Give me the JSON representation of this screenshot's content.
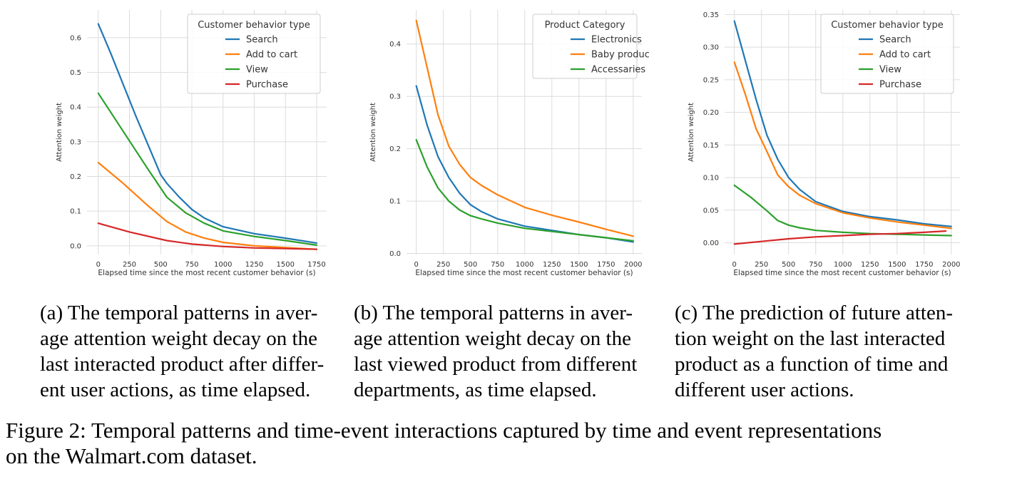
{
  "chart_data": [
    {
      "type": "line",
      "title": "",
      "xlabel": "Elapsed time since the most recent customer behavior (s)",
      "ylabel": "Attention weight",
      "xlim": [
        -90,
        1830
      ],
      "ylim": [
        -0.025,
        0.68
      ],
      "xticks": [
        0,
        250,
        500,
        750,
        1000,
        1250,
        1500,
        1750
      ],
      "yticks": [
        0.0,
        0.1,
        0.2,
        0.3,
        0.4,
        0.5,
        0.6
      ],
      "ytick_labels": [
        "0.0",
        "0.1",
        "0.2",
        "0.3",
        "0.4",
        "0.5",
        "0.6"
      ],
      "grid": true,
      "legend": {
        "title": "Customer behavior type",
        "placement": "top-right"
      },
      "series": [
        {
          "name": "Search",
          "color": "#1f77b4",
          "x": [
            0,
            100,
            200,
            300,
            400,
            500,
            550,
            650,
            750,
            850,
            1000,
            1250,
            1500,
            1750
          ],
          "y": [
            0.64,
            0.555,
            0.465,
            0.375,
            0.29,
            0.205,
            0.18,
            0.14,
            0.105,
            0.08,
            0.055,
            0.035,
            0.022,
            0.008
          ]
        },
        {
          "name": "Add to cart",
          "color": "#ff7f0e",
          "x": [
            0,
            200,
            400,
            550,
            700,
            850,
            1000,
            1250,
            1500,
            1750
          ],
          "y": [
            0.24,
            0.18,
            0.115,
            0.07,
            0.04,
            0.022,
            0.01,
            0.0,
            -0.005,
            -0.01
          ]
        },
        {
          "name": "View",
          "color": "#2ca02c",
          "x": [
            0,
            200,
            400,
            550,
            700,
            850,
            1000,
            1250,
            1500,
            1750
          ],
          "y": [
            0.44,
            0.33,
            0.22,
            0.14,
            0.095,
            0.065,
            0.043,
            0.027,
            0.015,
            0.002
          ]
        },
        {
          "name": "Purchase",
          "color": "#d62728",
          "x": [
            0,
            250,
            550,
            750,
            1000,
            1250,
            1500,
            1750
          ],
          "y": [
            0.065,
            0.04,
            0.015,
            0.005,
            -0.002,
            -0.006,
            -0.008,
            -0.01
          ]
        }
      ]
    },
    {
      "type": "line",
      "title": "",
      "xlabel": "Elapsed time since the most recent customer behavior (s)",
      "ylabel": "Attention weight",
      "xlim": [
        -90,
        2080
      ],
      "ylim": [
        -0.002,
        0.465
      ],
      "xticks": [
        0,
        250,
        500,
        750,
        1000,
        1250,
        1500,
        1750,
        2000
      ],
      "yticks": [
        0.0,
        0.1,
        0.2,
        0.3,
        0.4
      ],
      "ytick_labels": [
        "0.0",
        "0.1",
        "0.2",
        "0.3",
        "0.4"
      ],
      "grid": true,
      "legend": {
        "title": "Product Category",
        "placement": "top-right"
      },
      "series": [
        {
          "name": "Electronics",
          "color": "#1f77b4",
          "x": [
            0,
            100,
            200,
            300,
            400,
            500,
            600,
            750,
            1000,
            1250,
            1500,
            1750,
            2000
          ],
          "y": [
            0.32,
            0.245,
            0.185,
            0.145,
            0.115,
            0.093,
            0.08,
            0.066,
            0.052,
            0.044,
            0.036,
            0.03,
            0.022
          ]
        },
        {
          "name": "Baby products",
          "color": "#ff7f0e",
          "x": [
            0,
            100,
            200,
            300,
            400,
            500,
            600,
            750,
            1000,
            1250,
            1500,
            1750,
            2000
          ],
          "y": [
            0.445,
            0.355,
            0.265,
            0.205,
            0.17,
            0.145,
            0.13,
            0.112,
            0.088,
            0.073,
            0.06,
            0.046,
            0.033
          ]
        },
        {
          "name": "Accessaries",
          "color": "#2ca02c",
          "x": [
            0,
            100,
            200,
            300,
            400,
            500,
            600,
            750,
            1000,
            1250,
            1500,
            1750,
            2000
          ],
          "y": [
            0.217,
            0.165,
            0.125,
            0.1,
            0.083,
            0.072,
            0.066,
            0.058,
            0.048,
            0.042,
            0.036,
            0.03,
            0.024
          ]
        }
      ]
    },
    {
      "type": "line",
      "title": "",
      "xlabel": "Elapsed time since the most recent customer behavior (s)",
      "ylabel": "Attention weight",
      "xlim": [
        -90,
        2080
      ],
      "ylim": [
        -0.018,
        0.357
      ],
      "xticks": [
        0,
        250,
        500,
        750,
        1000,
        1250,
        1500,
        1750,
        2000
      ],
      "yticks": [
        0.0,
        0.05,
        0.1,
        0.15,
        0.2,
        0.25,
        0.3,
        0.35
      ],
      "ytick_labels": [
        "0.00",
        "0.05",
        "0.10",
        "0.15",
        "0.20",
        "0.25",
        "0.30",
        "0.35"
      ],
      "grid": true,
      "legend": {
        "title": "Customer behavior type",
        "placement": "top-right"
      },
      "series": [
        {
          "name": "Search",
          "color": "#1f77b4",
          "x": [
            0,
            100,
            200,
            300,
            400,
            500,
            600,
            750,
            1000,
            1250,
            1500,
            1750,
            2000
          ],
          "y": [
            0.34,
            0.28,
            0.22,
            0.165,
            0.128,
            0.1,
            0.082,
            0.063,
            0.048,
            0.04,
            0.035,
            0.029,
            0.025
          ]
        },
        {
          "name": "Add to cart",
          "color": "#ff7f0e",
          "x": [
            0,
            100,
            200,
            300,
            400,
            500,
            600,
            750,
            1000,
            1250,
            1500,
            1750,
            2000
          ],
          "y": [
            0.277,
            0.228,
            0.175,
            0.14,
            0.104,
            0.086,
            0.073,
            0.06,
            0.046,
            0.038,
            0.032,
            0.027,
            0.022
          ]
        },
        {
          "name": "View",
          "color": "#2ca02c",
          "x": [
            0,
            150,
            300,
            400,
            500,
            600,
            750,
            1000,
            1250,
            1500,
            1750,
            2000
          ],
          "y": [
            0.088,
            0.07,
            0.049,
            0.034,
            0.027,
            0.023,
            0.019,
            0.016,
            0.014,
            0.013,
            0.012,
            0.011
          ]
        },
        {
          "name": "Purchase",
          "color": "#d62728",
          "x": [
            0,
            250,
            500,
            750,
            1000,
            1250,
            1500,
            1750,
            1950
          ],
          "y": [
            -0.002,
            0.002,
            0.006,
            0.009,
            0.011,
            0.013,
            0.014,
            0.016,
            0.018
          ]
        }
      ]
    }
  ],
  "captions": [
    {
      "lines": [
        "(a) The temporal patterns in aver-",
        "age attention weight decay on the",
        "last interacted product after differ-",
        "ent user actions, as time elapsed."
      ]
    },
    {
      "lines": [
        "(b) The temporal patterns in aver-",
        "age attention weight decay on the",
        "last viewed product from different",
        "departments, as time elapsed."
      ]
    },
    {
      "lines": [
        "(c) The prediction of future atten-",
        "tion weight on the last interacted",
        "product as a function of time and",
        "different user actions."
      ]
    }
  ],
  "figure_caption": {
    "lines": [
      "Figure 2: Temporal patterns and time-event interactions captured by time and event representations",
      "on the Walmart.com dataset."
    ]
  }
}
